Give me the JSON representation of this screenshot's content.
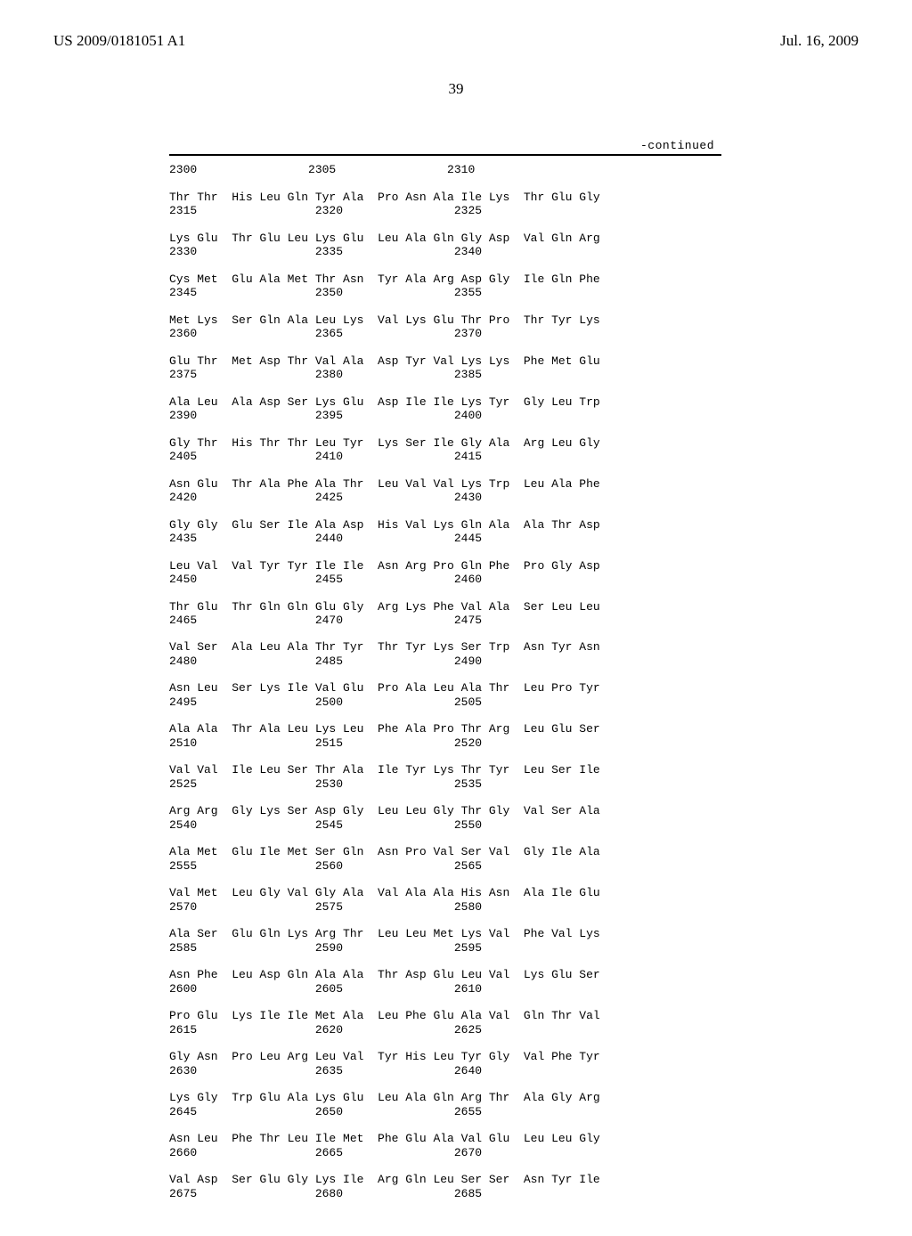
{
  "header": {
    "left": "US 2009/0181051 A1",
    "right": "Jul. 16, 2009"
  },
  "page_number": "39",
  "continued_label": "-continued",
  "sequence_text": "2300                2305                2310\n\nThr Thr  His Leu Gln Tyr Ala  Pro Asn Ala Ile Lys  Thr Glu Gly\n2315                 2320                2325\n\nLys Glu  Thr Glu Leu Lys Glu  Leu Ala Gln Gly Asp  Val Gln Arg\n2330                 2335                2340\n\nCys Met  Glu Ala Met Thr Asn  Tyr Ala Arg Asp Gly  Ile Gln Phe\n2345                 2350                2355\n\nMet Lys  Ser Gln Ala Leu Lys  Val Lys Glu Thr Pro  Thr Tyr Lys\n2360                 2365                2370\n\nGlu Thr  Met Asp Thr Val Ala  Asp Tyr Val Lys Lys  Phe Met Glu\n2375                 2380                2385\n\nAla Leu  Ala Asp Ser Lys Glu  Asp Ile Ile Lys Tyr  Gly Leu Trp\n2390                 2395                2400\n\nGly Thr  His Thr Thr Leu Tyr  Lys Ser Ile Gly Ala  Arg Leu Gly\n2405                 2410                2415\n\nAsn Glu  Thr Ala Phe Ala Thr  Leu Val Val Lys Trp  Leu Ala Phe\n2420                 2425                2430\n\nGly Gly  Glu Ser Ile Ala Asp  His Val Lys Gln Ala  Ala Thr Asp\n2435                 2440                2445\n\nLeu Val  Val Tyr Tyr Ile Ile  Asn Arg Pro Gln Phe  Pro Gly Asp\n2450                 2455                2460\n\nThr Glu  Thr Gln Gln Glu Gly  Arg Lys Phe Val Ala  Ser Leu Leu\n2465                 2470                2475\n\nVal Ser  Ala Leu Ala Thr Tyr  Thr Tyr Lys Ser Trp  Asn Tyr Asn\n2480                 2485                2490\n\nAsn Leu  Ser Lys Ile Val Glu  Pro Ala Leu Ala Thr  Leu Pro Tyr\n2495                 2500                2505\n\nAla Ala  Thr Ala Leu Lys Leu  Phe Ala Pro Thr Arg  Leu Glu Ser\n2510                 2515                2520\n\nVal Val  Ile Leu Ser Thr Ala  Ile Tyr Lys Thr Tyr  Leu Ser Ile\n2525                 2530                2535\n\nArg Arg  Gly Lys Ser Asp Gly  Leu Leu Gly Thr Gly  Val Ser Ala\n2540                 2545                2550\n\nAla Met  Glu Ile Met Ser Gln  Asn Pro Val Ser Val  Gly Ile Ala\n2555                 2560                2565\n\nVal Met  Leu Gly Val Gly Ala  Val Ala Ala His Asn  Ala Ile Glu\n2570                 2575                2580\n\nAla Ser  Glu Gln Lys Arg Thr  Leu Leu Met Lys Val  Phe Val Lys\n2585                 2590                2595\n\nAsn Phe  Leu Asp Gln Ala Ala  Thr Asp Glu Leu Val  Lys Glu Ser\n2600                 2605                2610\n\nPro Glu  Lys Ile Ile Met Ala  Leu Phe Glu Ala Val  Gln Thr Val\n2615                 2620                2625\n\nGly Asn  Pro Leu Arg Leu Val  Tyr His Leu Tyr Gly  Val Phe Tyr\n2630                 2635                2640\n\nLys Gly  Trp Glu Ala Lys Glu  Leu Ala Gln Arg Thr  Ala Gly Arg\n2645                 2650                2655\n\nAsn Leu  Phe Thr Leu Ile Met  Phe Glu Ala Val Glu  Leu Leu Gly\n2660                 2665                2670\n\nVal Asp  Ser Glu Gly Lys Ile  Arg Gln Leu Ser Ser  Asn Tyr Ile\n2675                 2680                2685"
}
